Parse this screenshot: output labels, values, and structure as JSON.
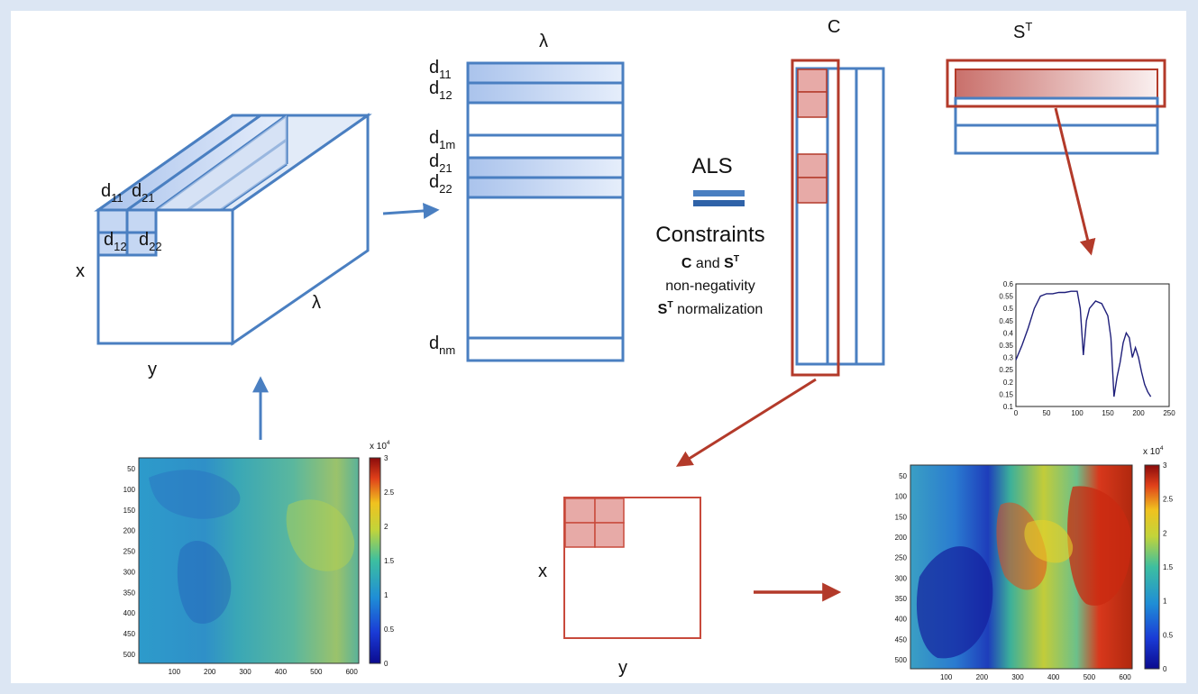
{
  "colors": {
    "blue": "#4a7fc1",
    "blue_fill": "#b9cff0",
    "red": "#b33a2a",
    "red_fill": "#e7aaa7",
    "navy": "#1f1f7a",
    "background": "#dce6f3"
  },
  "cube": {
    "labels": {
      "d11": {
        "main": "d",
        "sub": "11"
      },
      "d21": {
        "main": "d",
        "sub": "21"
      },
      "d12": {
        "main": "d",
        "sub": "12"
      },
      "d22": {
        "main": "d",
        "sub": "22"
      }
    },
    "axis_x": "x",
    "axis_y": "y",
    "axis_lambda": "λ"
  },
  "matrix_d": {
    "title": "λ",
    "rows": [
      {
        "main": "d",
        "sub": "11"
      },
      {
        "main": "d",
        "sub": "12"
      },
      {
        "main": "d",
        "sub": "1m"
      },
      {
        "main": "d",
        "sub": "21"
      },
      {
        "main": "d",
        "sub": "22"
      },
      {
        "main": "d",
        "sub": "nm"
      }
    ]
  },
  "als": {
    "title": "ALS",
    "constraints_title": "Constraints",
    "line1_a": "C",
    "line1_b": " and ",
    "line1_c": "S",
    "line1_c_sup": "T",
    "line2": "non-negativity",
    "line3_main": "S",
    "line3_sup": "T",
    "line3_rest": " normalization"
  },
  "matrix_c": {
    "title": "C"
  },
  "matrix_st": {
    "title_main": "S",
    "title_sup": "T"
  },
  "spectrum_plot": {
    "x_ticks": [
      "0",
      "50",
      "100",
      "150",
      "200",
      "250"
    ],
    "y_ticks": [
      "0.1",
      "0.15",
      "0.2",
      "0.25",
      "0.3",
      "0.35",
      "0.4",
      "0.45",
      "0.5",
      "0.55",
      "0.6"
    ]
  },
  "map_plot": {
    "axis_x": "x",
    "axis_y": "y"
  },
  "heatmap_left": {
    "y_ticks": [
      "50",
      "100",
      "150",
      "200",
      "250",
      "300",
      "350",
      "400",
      "450",
      "500"
    ],
    "x_ticks": [
      "100",
      "200",
      "300",
      "400",
      "500",
      "600"
    ],
    "colorbar_ticks": [
      "0",
      "0.5",
      "1",
      "1.5",
      "2",
      "2.5",
      "3"
    ],
    "colorbar_scale": "x 10",
    "colorbar_scale_exp": "4"
  },
  "heatmap_right": {
    "y_ticks": [
      "50",
      "100",
      "150",
      "200",
      "250",
      "300",
      "350",
      "400",
      "450",
      "500"
    ],
    "x_ticks": [
      "100",
      "200",
      "300",
      "400",
      "500",
      "600"
    ],
    "colorbar_ticks": [
      "0",
      "0.5",
      "1",
      "1.5",
      "2",
      "2.5",
      "3"
    ],
    "colorbar_scale": "x 10",
    "colorbar_scale_exp": "4"
  },
  "chart_data": {
    "type": "line",
    "x": [
      0,
      10,
      20,
      30,
      40,
      50,
      60,
      70,
      80,
      90,
      100,
      105,
      110,
      115,
      120,
      130,
      140,
      150,
      155,
      160,
      165,
      170,
      175,
      180,
      185,
      190,
      195,
      200,
      205,
      210,
      215,
      220
    ],
    "y": [
      0.29,
      0.35,
      0.42,
      0.5,
      0.55,
      0.56,
      0.56,
      0.565,
      0.565,
      0.57,
      0.57,
      0.5,
      0.31,
      0.45,
      0.5,
      0.53,
      0.52,
      0.47,
      0.38,
      0.14,
      0.22,
      0.28,
      0.36,
      0.4,
      0.38,
      0.3,
      0.34,
      0.3,
      0.24,
      0.19,
      0.16,
      0.14
    ],
    "xlim": [
      0,
      250
    ],
    "ylim": [
      0.1,
      0.6
    ]
  }
}
